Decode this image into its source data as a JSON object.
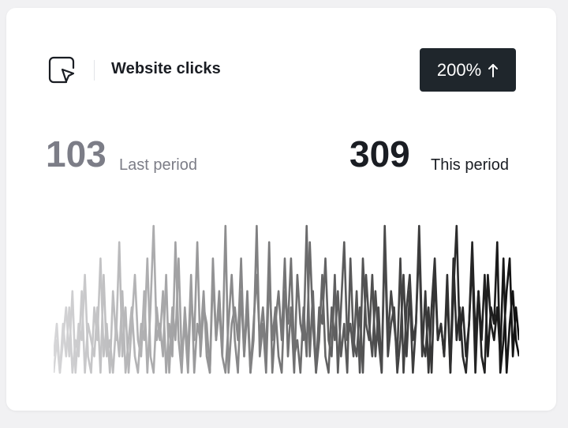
{
  "widget": {
    "title": "Website clicks",
    "icon": "hand-pointer-icon",
    "badge": {
      "label": "200%",
      "icon": "arrow-up-icon"
    },
    "last_period": {
      "value": "103",
      "label": "Last period"
    },
    "this_period": {
      "value": "309",
      "label": "This period"
    }
  },
  "colors": {
    "badge_bg": "#1f262c",
    "value_muted": "#7c7d87",
    "value_strong": "#1a1d23",
    "line_start": "#d6d6d8",
    "line_end": "#111111"
  },
  "chart_data": {
    "type": "line",
    "title": "",
    "xlabel": "",
    "ylabel": "",
    "grid": false,
    "legend": "none",
    "series": [
      {
        "values": [
          0,
          2,
          0,
          3,
          1,
          4,
          0,
          2,
          1,
          5,
          0,
          3,
          2,
          1,
          4,
          0,
          6,
          1,
          2,
          0,
          3,
          1,
          5,
          0,
          2,
          4,
          1,
          0,
          3,
          2,
          7,
          1,
          0,
          4,
          2,
          5,
          0,
          3,
          1,
          8,
          2,
          0,
          4,
          1,
          6,
          0,
          3,
          2,
          5,
          1,
          0,
          7,
          2,
          4,
          1,
          0,
          3,
          6,
          2,
          0,
          5,
          1,
          4,
          0,
          2,
          9,
          1,
          3,
          0,
          6,
          2,
          4,
          1,
          0,
          5,
          3,
          7,
          1,
          2,
          0,
          4,
          1,
          8,
          3,
          0,
          2,
          6,
          1,
          0,
          4,
          2,
          5,
          1,
          3,
          0,
          7,
          2,
          1,
          4,
          0,
          6,
          3,
          1,
          5,
          2,
          0,
          8,
          1,
          3,
          4,
          0,
          2,
          6,
          1,
          5,
          0,
          3,
          9,
          2,
          1,
          4,
          0,
          6,
          2,
          3,
          1,
          5,
          0,
          7,
          2,
          4,
          1,
          0,
          3,
          8,
          2,
          5,
          1,
          0,
          6,
          3,
          2,
          4,
          1,
          7,
          0,
          3,
          5,
          2,
          1
        ]
      },
      {
        "values": [
          1,
          3,
          0,
          2,
          4,
          1,
          5,
          0,
          3,
          2,
          6,
          1,
          0,
          4,
          2,
          7,
          1,
          3,
          0,
          5,
          2,
          8,
          1,
          4,
          0,
          3,
          6,
          2,
          1,
          5,
          0,
          4,
          9,
          2,
          3,
          1,
          6,
          0,
          4,
          2,
          7,
          1,
          3,
          0,
          5,
          2,
          8,
          1,
          4,
          3,
          0,
          6,
          2,
          5,
          1,
          9,
          0,
          3,
          4,
          2,
          7,
          1,
          5,
          0,
          3,
          6,
          2,
          4,
          1,
          8,
          0,
          3,
          5,
          2,
          7,
          1,
          4,
          0,
          6,
          3,
          2,
          9,
          1,
          5,
          0,
          4,
          3,
          7,
          2,
          1,
          6,
          0,
          4,
          8,
          2,
          3,
          1,
          5,
          0,
          7,
          3,
          2,
          6,
          1,
          4,
          0,
          9,
          2,
          5,
          3,
          1,
          7,
          0,
          4,
          6,
          2,
          3,
          8,
          1,
          5,
          0,
          4,
          7,
          2,
          3,
          1,
          6,
          0,
          5,
          9,
          2,
          4,
          1,
          3,
          7,
          0,
          5,
          2,
          6,
          1,
          4,
          3,
          8,
          0,
          2,
          5,
          7,
          1,
          4,
          2
        ]
      }
    ]
  }
}
